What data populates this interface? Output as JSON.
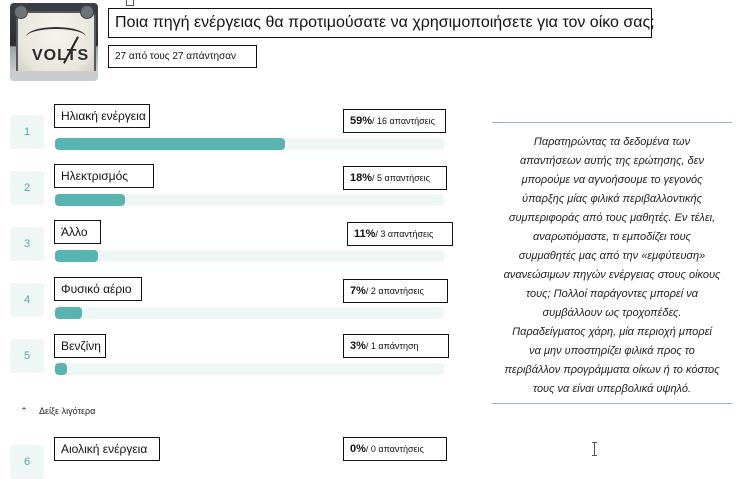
{
  "question": {
    "title": "Ποια πηγή ενέργειας θα προτιμούσατε να χρησιμοποιήσετε για τον οίκο σας;",
    "responses_summary": "27 από τους 27 απάντησαν",
    "image_text": "VOLTS"
  },
  "options": [
    {
      "rank": "1",
      "label": "Ηλιακή ενέργεια",
      "percent_text": "59%",
      "count_text": "/ 16 απαντήσεις",
      "percent_value": 59
    },
    {
      "rank": "2",
      "label": "Ηλεκτρισμός",
      "percent_text": "18%",
      "count_text": "/ 5 απαντήσεις",
      "percent_value": 18
    },
    {
      "rank": "3",
      "label": "Άλλο",
      "percent_text": "11%",
      "count_text": "/ 3 απαντήσεις",
      "percent_value": 11
    },
    {
      "rank": "4",
      "label": "Φυσικό αέριο",
      "percent_text": "7%",
      "count_text": "/ 2 απαντήσεις",
      "percent_value": 7
    },
    {
      "rank": "5",
      "label": "Βενζίνη",
      "percent_text": "3%",
      "count_text": "/ 1 απάντηση",
      "percent_value": 3
    },
    {
      "rank": "6",
      "label": "Αιολική ενέργεια",
      "percent_text": "0%",
      "count_text": "/ 0 απαντήσεις",
      "percent_value": 0
    }
  ],
  "toggle": {
    "label": "Δείξε λιγότερα",
    "icon": "chevron-up-icon"
  },
  "commentary": {
    "lines": [
      "Παρατηρώντας τα δεδομένα των",
      "απαντήσεων αυτής της ερώτησης, δεν",
      "μπορούμε να αγνοήσουμε το γεγονός",
      "ύπαρξης μίας φιλικά περιβαλλοντικής",
      "συμπεριφοράς από τους μαθητές. Εν τέλει,",
      "αναρωτιόμαστε, τι εμποδίζει τους",
      "συμμαθητές μας από την «εμφύτευση»",
      "ανανεώσιμων πηγών ενέργειας στους οίκους",
      "τους; Πολλοί παράγοντες μπορεί να",
      "συμβάλλουν ως τροχοπέδες.",
      "Παραδείγματος χάρη, μία περιοχή μπορεί",
      "να μην υποστηρίζει φιλικά προς το",
      "περιβάλλον προγράμματα οίκων ή το κόστος",
      "τους να είναι υπερβολικά υψηλό."
    ]
  },
  "colors": {
    "bar_fill": "#59b3ae",
    "bar_track": "#eef6f6",
    "rank_text": "#4aa8b3",
    "divider": "#8fb9bd"
  }
}
